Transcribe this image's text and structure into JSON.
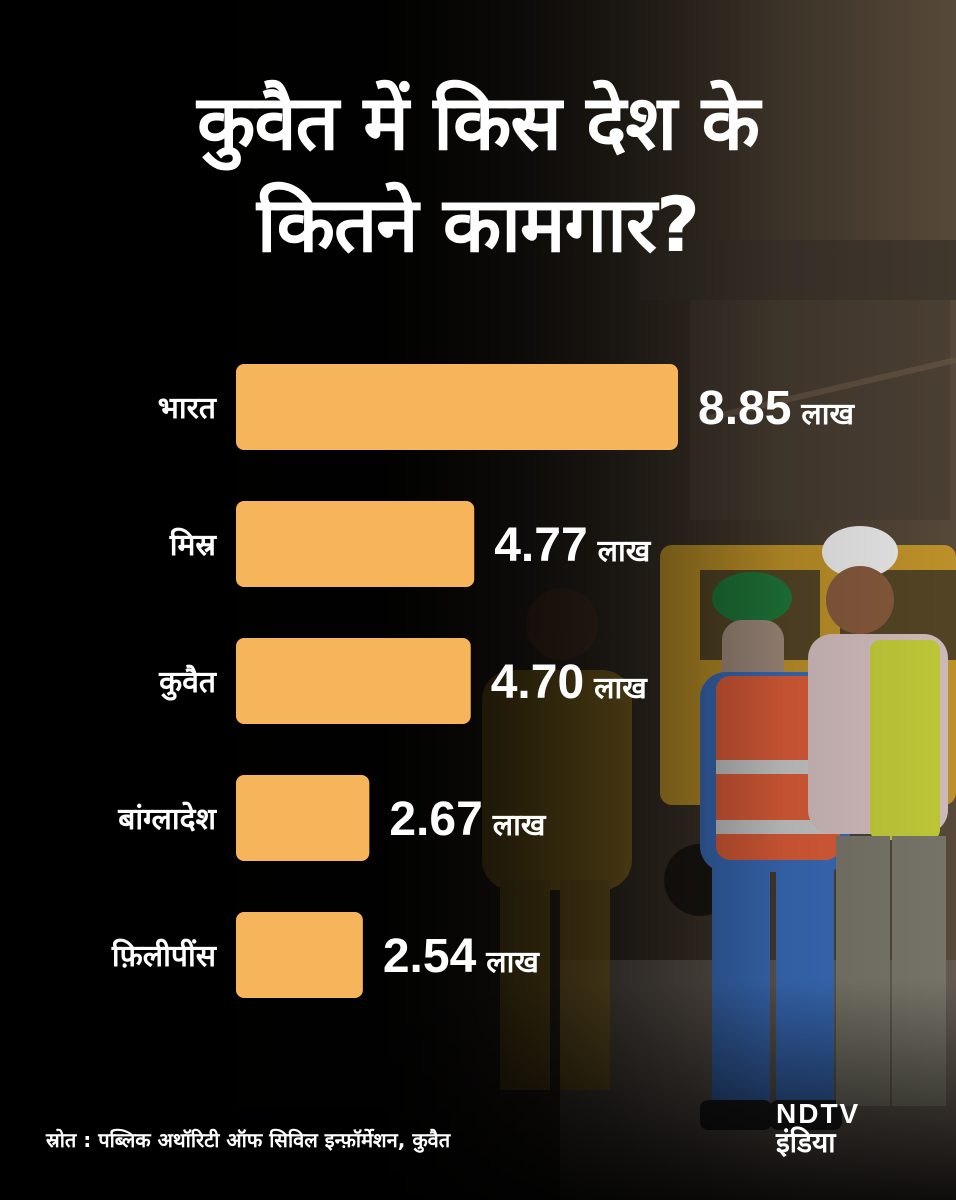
{
  "title": {
    "line1": "कुवैत में किस देश के",
    "line2": "कितने कामगार?"
  },
  "chart_data": {
    "type": "bar",
    "orientation": "horizontal",
    "categories": [
      "भारत",
      "मिस्र",
      "कुवैत",
      "बांग्लादेश",
      "फ़िलीपींस"
    ],
    "values": [
      8.85,
      4.77,
      4.7,
      2.67,
      2.54
    ],
    "value_labels": [
      "8.85",
      "4.77",
      "4.70",
      "2.67",
      "2.54"
    ],
    "unit": "लाख",
    "bar_color": "#F6B45B",
    "grid": false
  },
  "source": "स्रोत : पब्लिक अथॉरिटी ऑफ सिविल इन्फ़ॉर्मेशन, कुवैत",
  "brand": {
    "line1": "NDTV",
    "line2": "इंडिया"
  },
  "colors": {
    "background": "#000000",
    "bar": "#F6B45B",
    "text": "#FFFFFF",
    "worker_vest_orange": "#E4603A",
    "worker_vest_yellow": "#C8D23A",
    "truck_yellow": "#E8B62A"
  }
}
